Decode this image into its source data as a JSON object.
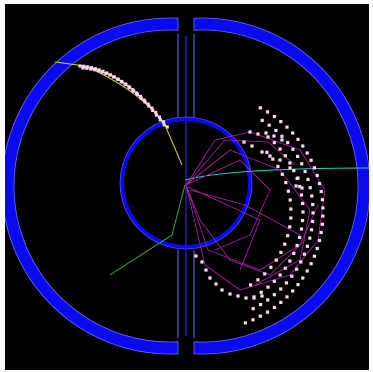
{
  "app": {
    "title": ""
  },
  "scene": {
    "background_color": "#000000",
    "page_color": "#ffffff",
    "detector_color": "#0a0af0",
    "detector_edge_color": "#6a6aff",
    "hit_color": "#ffd6f0",
    "colors": {
      "track_cyan": "#28c8c0",
      "track_green": "#33aa33",
      "track_yellow": "#d8d830",
      "track_magenta": "#b020b0"
    },
    "icons": [
      "outer-ring",
      "inner-ring",
      "central-gap-divider",
      "hit-marker"
    ]
  }
}
